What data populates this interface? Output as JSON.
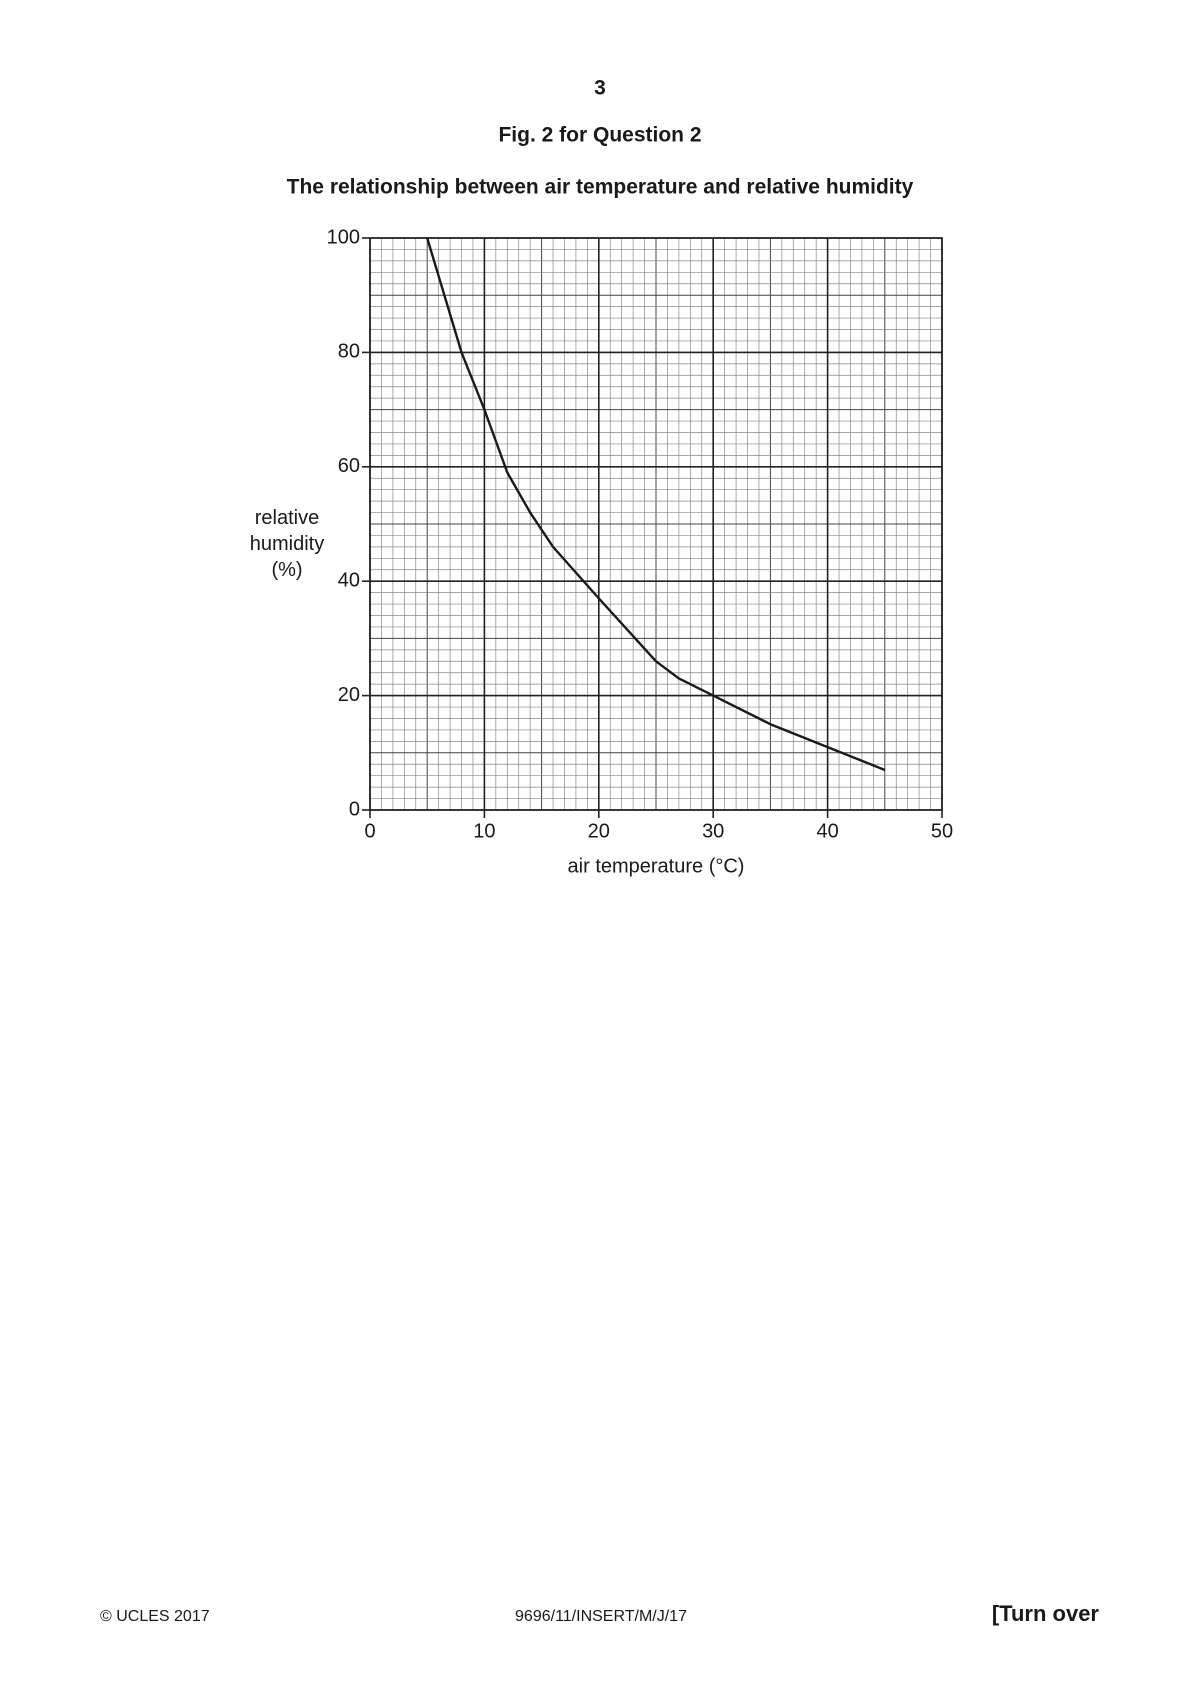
{
  "page_number": "3",
  "figure_caption": "Fig. 2 for Question 2",
  "chart_data": {
    "type": "line",
    "title": "The relationship between air temperature and relative humidity",
    "xlabel": "air temperature (°C)",
    "ylabel": "relative humidity (%)",
    "x": [
      5,
      8,
      10,
      12,
      14,
      16,
      20,
      25,
      27,
      30,
      35,
      40,
      45
    ],
    "values": [
      100,
      80,
      70,
      59,
      52,
      46,
      37,
      26,
      23,
      20,
      15,
      11,
      7
    ],
    "color": "#1a1a1a",
    "xlim": [
      0,
      50
    ],
    "xticks": [
      0,
      10,
      20,
      30,
      40,
      50
    ],
    "ylim": [
      0,
      100
    ],
    "yticks": [
      0,
      20,
      40,
      60,
      80,
      100
    ],
    "grid": true
  },
  "footer": {
    "left": "© UCLES 2017",
    "center": "9696/11/INSERT/M/J/17",
    "right": "[Turn over"
  }
}
